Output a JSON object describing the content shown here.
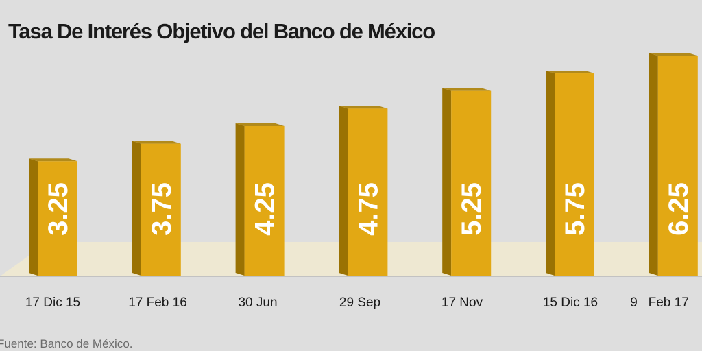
{
  "title": "Tasa De Interés Objetivo del Banco de México",
  "source": "Fuente: Banco de México.",
  "colors": {
    "background": "#dedede",
    "floor": "#eee8d2",
    "bar_front": "#e2a814",
    "bar_side": "#9a7203",
    "bar_top": "#b18a1b",
    "label": "#ffffff"
  },
  "chart_data": {
    "type": "bar",
    "title": "Tasa De Interés Objetivo del Banco de México",
    "xlabel": "",
    "ylabel": "",
    "categories": [
      "17 Dic 15",
      "17 Feb 16",
      "30 Jun",
      "29 Sep",
      "17 Nov",
      "15 Dic 16",
      "9   Feb 17"
    ],
    "values": [
      3.25,
      3.75,
      4.25,
      4.75,
      5.25,
      5.75,
      6.25
    ],
    "data_labels": [
      "3.25",
      "3.75",
      "4.25",
      "4.75",
      "5.25",
      "5.75",
      "6.25"
    ],
    "ylim": [
      0,
      6.5
    ],
    "grid": false,
    "legend": "none"
  }
}
